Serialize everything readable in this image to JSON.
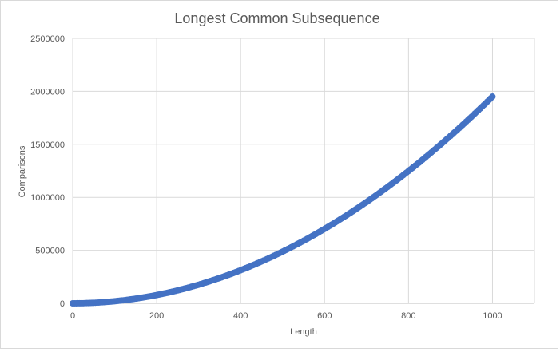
{
  "chart_data": {
    "type": "scatter",
    "title": "Longest Common Subsequence",
    "xlabel": "Length",
    "ylabel": "Comparisons",
    "xlim": [
      0,
      1100
    ],
    "ylim": [
      0,
      2500000
    ],
    "x_ticks": [
      "0",
      "200",
      "400",
      "600",
      "800",
      "1000"
    ],
    "y_ticks": [
      "0",
      "500000",
      "1000000",
      "1500000",
      "2000000",
      "2500000"
    ],
    "grid": true,
    "legend": "none",
    "marker_color": "#4472c4",
    "grid_color": "#d9d9d9",
    "series": [
      {
        "x": [
          0,
          25,
          50,
          75,
          100,
          125,
          150,
          175,
          200,
          225,
          250,
          275,
          300,
          325,
          350,
          375,
          400,
          425,
          450,
          475,
          500,
          525,
          550,
          575,
          600,
          625,
          650,
          675,
          700,
          725,
          750,
          775,
          800,
          825,
          850,
          875,
          900,
          925,
          950,
          975,
          1000
        ],
        "y": [
          0,
          1220,
          4880,
          10980,
          19500,
          30500,
          43900,
          59800,
          78000,
          98700,
          121900,
          147500,
          175500,
          206000,
          238900,
          274200,
          312000,
          352200,
          394900,
          439900,
          487500,
          537500,
          589800,
          644700,
          702000,
          761700,
          823900,
          888500,
          955500,
          1025000,
          1096900,
          1171200,
          1248000,
          1327200,
          1408900,
          1493000,
          1579500,
          1668500,
          1759900,
          1853700,
          1950000
        ]
      }
    ]
  }
}
